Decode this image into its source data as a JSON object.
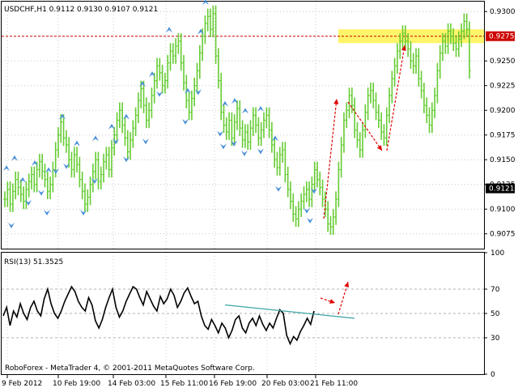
{
  "chart_data": [
    {
      "type": "line",
      "panel": "price",
      "title": "USDCHF,H1  0.9112 0.9130 0.9107 0.9121",
      "ylim": [
        0.906,
        0.931
      ],
      "y_ticks": [
        "0.9300",
        "0.9250",
        "0.9225",
        "0.9200",
        "0.9175",
        "0.9150",
        "0.9125",
        "0.9100",
        "0.9075"
      ],
      "y_tick_values": [
        0.93,
        0.925,
        0.9225,
        0.92,
        0.9175,
        0.915,
        0.9125,
        0.91,
        0.9075
      ],
      "resistance_level": 0.9275,
      "resistance_label": "0.9275",
      "current_price": 0.9121,
      "current_price_label": "0.9121",
      "resistance_zone": [
        0.9268,
        0.9282
      ],
      "series": [
        {
          "values": [
            0.911,
            0.912,
            0.9105,
            0.9118,
            0.913,
            0.9122,
            0.9115,
            0.9108,
            0.912,
            0.9128,
            0.9135,
            0.9125,
            0.914,
            0.9148,
            0.9138,
            0.913,
            0.9118,
            0.9125,
            0.914,
            0.916,
            0.9175,
            0.9188,
            0.9172,
            0.9165,
            0.915,
            0.914,
            0.9155,
            0.9145,
            0.913,
            0.9118,
            0.9105,
            0.9112,
            0.9125,
            0.9138,
            0.915,
            0.9128,
            0.9135,
            0.9148,
            0.9155,
            0.914,
            0.9162,
            0.9175,
            0.919,
            0.92,
            0.9185,
            0.9172,
            0.9158,
            0.917,
            0.9182,
            0.9195,
            0.921,
            0.9222,
            0.9205,
            0.919,
            0.92,
            0.9215,
            0.923,
            0.9245,
            0.9238,
            0.9225,
            0.923,
            0.9248,
            0.926,
            0.9255,
            0.9265,
            0.927,
            0.9248,
            0.9228,
            0.921,
            0.9198,
            0.9212,
            0.9225,
            0.924,
            0.9258,
            0.9275,
            0.9288,
            0.9295,
            0.9282,
            0.9298,
            0.9255,
            0.923,
            0.9198,
            0.9185,
            0.9178,
            0.919,
            0.9172,
            0.9188,
            0.9202,
            0.9182,
            0.917,
            0.9178,
            0.9168,
            0.9182,
            0.9195,
            0.9185,
            0.9172,
            0.918,
            0.919,
            0.9195,
            0.918,
            0.9165,
            0.915,
            0.9142,
            0.9155,
            0.916,
            0.9135,
            0.912,
            0.9108,
            0.9095,
            0.909,
            0.91,
            0.9108,
            0.9115,
            0.912,
            0.911,
            0.9125,
            0.914,
            0.913,
            0.9122,
            0.911,
            0.91,
            0.9085,
            0.9082,
            0.9092,
            0.911,
            0.914,
            0.9165,
            0.919,
            0.92,
            0.9215,
            0.9205,
            0.918,
            0.917,
            0.916,
            0.918,
            0.9198,
            0.9215,
            0.922,
            0.921,
            0.9198,
            0.919,
            0.9178,
            0.9172,
            0.9195,
            0.9215,
            0.9232,
            0.9245,
            0.926,
            0.927,
            0.9278,
            0.927,
            0.9262,
            0.925,
            0.9245,
            0.9255,
            0.9232,
            0.922,
            0.9205,
            0.9195,
            0.9185,
            0.92,
            0.9215,
            0.924,
            0.9258,
            0.927,
            0.9265,
            0.928,
            0.9275,
            0.9268,
            0.9262,
            0.9272,
            0.928,
            0.929,
            0.9282,
            0.924
          ],
          "color": "#66cc33"
        }
      ],
      "x_ticks": [
        "9 Feb 2012",
        "10 Feb 19:00",
        "14 Feb 03:00",
        "15 Feb 11:00",
        "16 Feb 19:00",
        "20 Feb 03:00",
        "21 Feb 11:00"
      ],
      "fractal_up_markers": [
        8,
        18,
        28,
        43,
        60,
        77,
        95,
        118,
        138,
        156,
        176,
        188,
        209,
        232,
        248,
        254,
        262,
        278,
        290,
        303,
        322,
        340
      ],
      "fractal_down_markers": [
        14,
        35,
        51,
        58,
        69,
        82,
        103,
        117,
        143,
        156,
        180,
        197,
        229,
        245,
        272,
        276,
        289,
        302,
        322,
        344,
        379,
        383,
        388
      ],
      "arrow_color": "#e00000",
      "grid": true
    },
    {
      "type": "line",
      "panel": "indicator",
      "title": "RSI(13) 51.3525",
      "ylim": [
        0,
        100
      ],
      "y_ticks": [
        "100",
        "70",
        "50",
        "30",
        "0"
      ],
      "y_tick_values": [
        100,
        70,
        50,
        30,
        0
      ],
      "levels": [
        70,
        50,
        30
      ],
      "series": [
        {
          "values": [
            48,
            55,
            40,
            52,
            47,
            58,
            50,
            45,
            55,
            60,
            52,
            48,
            62,
            70,
            58,
            50,
            46,
            52,
            60,
            66,
            72,
            68,
            60,
            55,
            52,
            63,
            57,
            44,
            38,
            45,
            55,
            63,
            70,
            55,
            47,
            52,
            60,
            66,
            72,
            70,
            63,
            57,
            68,
            62,
            56,
            52,
            64,
            58,
            62,
            70,
            65,
            55,
            60,
            67,
            71,
            64,
            58,
            60,
            48,
            40,
            37,
            45,
            40,
            34,
            42,
            38,
            30,
            36,
            45,
            48,
            38,
            34,
            42,
            46,
            40,
            48,
            41,
            36,
            42,
            38,
            46,
            53,
            50,
            32,
            25,
            31,
            28,
            35,
            40,
            46,
            41,
            52
          ],
          "color": "#000000"
        }
      ],
      "trendline_color": "#3aa3a3"
    }
  ],
  "footer": {
    "copyright": "RoboForex - MetaTrader 4, © 2001-2011 MetaQuotes Software Corp."
  }
}
